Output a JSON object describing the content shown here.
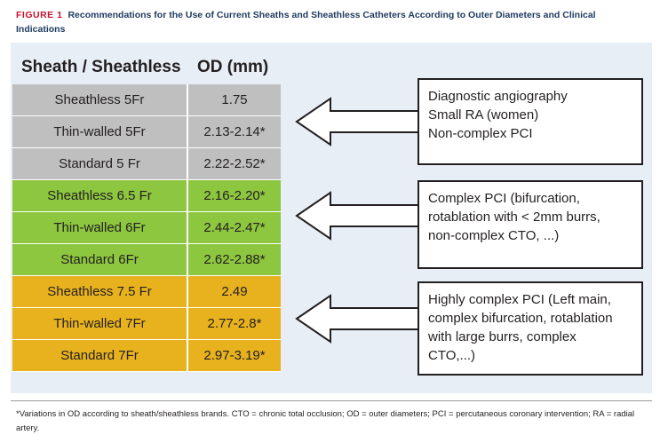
{
  "caption": {
    "label": "FIGURE 1",
    "title": "Recommendations for the Use of Current Sheaths and Sheathless Catheters According to Outer Diameters and Clinical Indications"
  },
  "table": {
    "headers": [
      "Sheath / Sheathless",
      "OD (mm)"
    ],
    "groups": [
      {
        "color": "#bfbfbf",
        "rows": [
          [
            "Sheathless 5Fr",
            "1.75"
          ],
          [
            "Thin-walled 5Fr",
            "2.13-2.14*"
          ],
          [
            "Standard 5 Fr",
            "2.22-2.52*"
          ]
        ]
      },
      {
        "color": "#8dc63f",
        "rows": [
          [
            "Sheathless 6.5 Fr",
            "2.16-2.20*"
          ],
          [
            "Thin-walled 6Fr",
            "2.44-2.47*"
          ],
          [
            "Standard 6Fr",
            "2.62-2.88*"
          ]
        ]
      },
      {
        "color": "#e8b21e",
        "rows": [
          [
            "Sheathless 7.5 Fr",
            "2.49"
          ],
          [
            "Thin-walled 7Fr",
            "2.77-2.8*"
          ],
          [
            "Standard 7Fr",
            "2.97-3.19*"
          ]
        ]
      }
    ]
  },
  "recommendations": [
    [
      "Diagnostic angiography",
      "Small RA (women)",
      "Non-complex PCI"
    ],
    [
      "Complex PCI (bifurcation,",
      "rotablation with < 2mm burrs,",
      "non-complex CTO, ...)"
    ],
    [
      "Highly complex PCI (Left main,",
      "complex bifurcation, rotablation",
      "with large burrs, complex",
      "CTO,...)"
    ]
  ],
  "footnote": "*Variations in OD according to sheath/sheathless brands. CTO = chronic total occlusion; OD = outer diameters; PCI = percutaneous coronary intervention; RA = radial artery."
}
